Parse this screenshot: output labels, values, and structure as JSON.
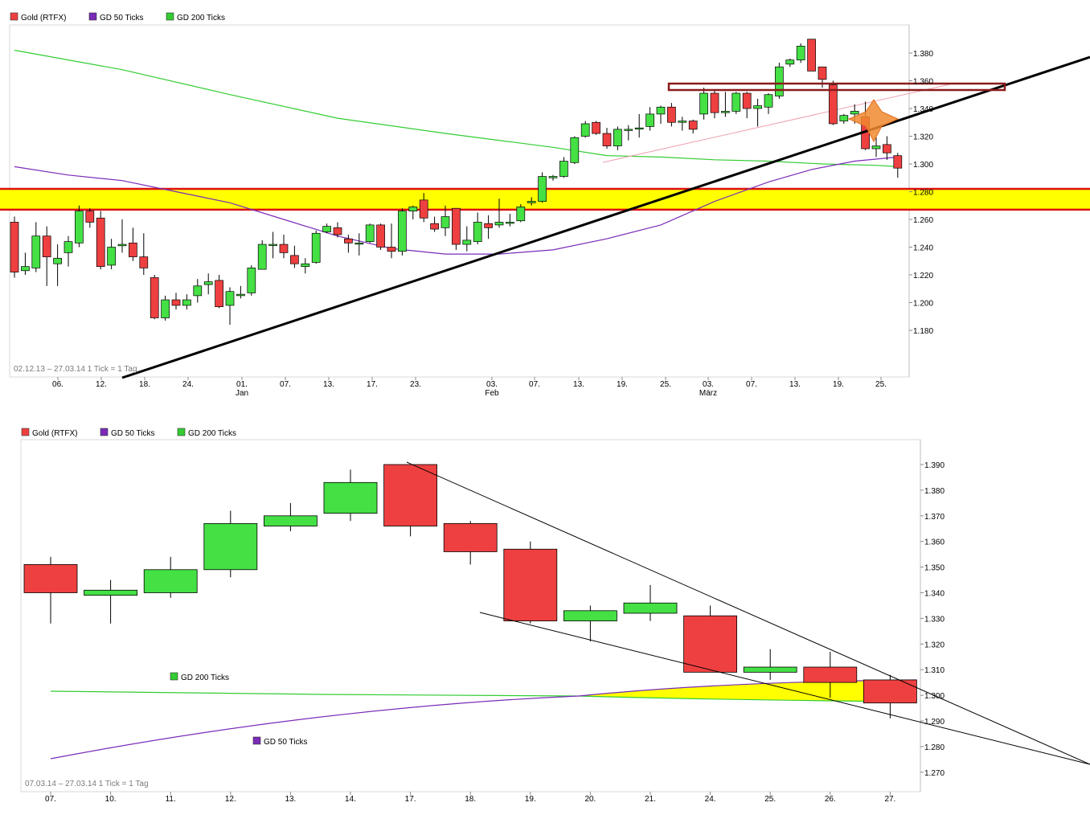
{
  "colors": {
    "up": "#44e044",
    "down": "#ee4040",
    "gd50": "#7a2bb8",
    "gd200": "#33cc33",
    "band": "#ffff00",
    "band_border": "#dd1111",
    "resistance": "#8b1a1a",
    "star": "#f08a30",
    "trend": "#000000"
  },
  "legend": {
    "series1": "Gold (RTFX)",
    "series2": "GD 50 Ticks",
    "series3": "GD 200 Ticks"
  },
  "chart_data": [
    {
      "type": "candlestick",
      "period_note": "02.12.13 – 27.03.14",
      "tick_note": "1 Tick = 1 Tag",
      "y_ticks": [
        "1.380",
        "1.360",
        "1.340",
        "1.320",
        "1.300",
        "1.280",
        "1.260",
        "1.240",
        "1.220",
        "1.200",
        "1.180"
      ],
      "x_ticks": [
        "06.",
        "12.",
        "18.",
        "24.",
        "01.",
        "07.",
        "13.",
        "17.",
        "23.",
        "03.",
        "07.",
        "13.",
        "19.",
        "25.",
        "03.",
        "07.",
        "13.",
        "19.",
        "25."
      ],
      "month_labels": [
        "Jan",
        "Feb",
        "März"
      ],
      "ylim": [
        1.164,
        1.4
      ],
      "candles": [
        {
          "o": 1.258,
          "h": 1.262,
          "l": 1.218,
          "c": 1.222
        },
        {
          "o": 1.223,
          "h": 1.236,
          "l": 1.22,
          "c": 1.226
        },
        {
          "o": 1.225,
          "h": 1.258,
          "l": 1.222,
          "c": 1.248
        },
        {
          "o": 1.248,
          "h": 1.255,
          "l": 1.212,
          "c": 1.233
        },
        {
          "o": 1.228,
          "h": 1.242,
          "l": 1.212,
          "c": 1.232
        },
        {
          "o": 1.236,
          "h": 1.248,
          "l": 1.226,
          "c": 1.244
        },
        {
          "o": 1.243,
          "h": 1.27,
          "l": 1.24,
          "c": 1.266
        },
        {
          "o": 1.266,
          "h": 1.268,
          "l": 1.254,
          "c": 1.258
        },
        {
          "o": 1.261,
          "h": 1.266,
          "l": 1.224,
          "c": 1.226
        },
        {
          "o": 1.227,
          "h": 1.246,
          "l": 1.224,
          "c": 1.24
        },
        {
          "o": 1.241,
          "h": 1.26,
          "l": 1.236,
          "c": 1.242
        },
        {
          "o": 1.243,
          "h": 1.254,
          "l": 1.23,
          "c": 1.233
        },
        {
          "o": 1.233,
          "h": 1.25,
          "l": 1.22,
          "c": 1.225
        },
        {
          "o": 1.218,
          "h": 1.22,
          "l": 1.188,
          "c": 1.189
        },
        {
          "o": 1.189,
          "h": 1.205,
          "l": 1.187,
          "c": 1.202
        },
        {
          "o": 1.202,
          "h": 1.207,
          "l": 1.195,
          "c": 1.198
        },
        {
          "o": 1.198,
          "h": 1.206,
          "l": 1.195,
          "c": 1.202
        },
        {
          "o": 1.205,
          "h": 1.217,
          "l": 1.2,
          "c": 1.212
        },
        {
          "o": 1.213,
          "h": 1.221,
          "l": 1.206,
          "c": 1.215
        },
        {
          "o": 1.216,
          "h": 1.22,
          "l": 1.196,
          "c": 1.197
        },
        {
          "o": 1.198,
          "h": 1.211,
          "l": 1.184,
          "c": 1.208
        },
        {
          "o": 1.205,
          "h": 1.212,
          "l": 1.203,
          "c": 1.206
        },
        {
          "o": 1.207,
          "h": 1.227,
          "l": 1.205,
          "c": 1.225
        },
        {
          "o": 1.224,
          "h": 1.245,
          "l": 1.224,
          "c": 1.242
        },
        {
          "o": 1.242,
          "h": 1.251,
          "l": 1.232,
          "c": 1.242
        },
        {
          "o": 1.242,
          "h": 1.249,
          "l": 1.232,
          "c": 1.236
        },
        {
          "o": 1.234,
          "h": 1.241,
          "l": 1.225,
          "c": 1.228
        },
        {
          "o": 1.226,
          "h": 1.232,
          "l": 1.221,
          "c": 1.228
        },
        {
          "o": 1.229,
          "h": 1.252,
          "l": 1.228,
          "c": 1.25
        },
        {
          "o": 1.251,
          "h": 1.257,
          "l": 1.25,
          "c": 1.255
        },
        {
          "o": 1.254,
          "h": 1.258,
          "l": 1.247,
          "c": 1.249
        },
        {
          "o": 1.246,
          "h": 1.249,
          "l": 1.236,
          "c": 1.243
        },
        {
          "o": 1.243,
          "h": 1.25,
          "l": 1.234,
          "c": 1.243
        },
        {
          "o": 1.244,
          "h": 1.257,
          "l": 1.243,
          "c": 1.256
        },
        {
          "o": 1.256,
          "h": 1.257,
          "l": 1.238,
          "c": 1.24
        },
        {
          "o": 1.24,
          "h": 1.257,
          "l": 1.232,
          "c": 1.237
        },
        {
          "o": 1.237,
          "h": 1.268,
          "l": 1.234,
          "c": 1.266
        },
        {
          "o": 1.266,
          "h": 1.27,
          "l": 1.26,
          "c": 1.269
        },
        {
          "o": 1.274,
          "h": 1.279,
          "l": 1.258,
          "c": 1.261
        },
        {
          "o": 1.257,
          "h": 1.262,
          "l": 1.251,
          "c": 1.253
        },
        {
          "o": 1.254,
          "h": 1.27,
          "l": 1.248,
          "c": 1.262
        },
        {
          "o": 1.268,
          "h": 1.268,
          "l": 1.238,
          "c": 1.242
        },
        {
          "o": 1.242,
          "h": 1.255,
          "l": 1.237,
          "c": 1.245
        },
        {
          "o": 1.244,
          "h": 1.265,
          "l": 1.242,
          "c": 1.258
        },
        {
          "o": 1.257,
          "h": 1.263,
          "l": 1.246,
          "c": 1.254
        },
        {
          "o": 1.256,
          "h": 1.275,
          "l": 1.254,
          "c": 1.258
        },
        {
          "o": 1.258,
          "h": 1.264,
          "l": 1.255,
          "c": 1.258
        },
        {
          "o": 1.259,
          "h": 1.271,
          "l": 1.258,
          "c": 1.269
        },
        {
          "o": 1.272,
          "h": 1.276,
          "l": 1.27,
          "c": 1.273
        },
        {
          "o": 1.273,
          "h": 1.294,
          "l": 1.272,
          "c": 1.291
        },
        {
          "o": 1.29,
          "h": 1.292,
          "l": 1.288,
          "c": 1.291
        },
        {
          "o": 1.291,
          "h": 1.305,
          "l": 1.29,
          "c": 1.302
        },
        {
          "o": 1.301,
          "h": 1.32,
          "l": 1.3,
          "c": 1.319
        },
        {
          "o": 1.32,
          "h": 1.331,
          "l": 1.319,
          "c": 1.329
        },
        {
          "o": 1.33,
          "h": 1.331,
          "l": 1.321,
          "c": 1.322
        },
        {
          "o": 1.322,
          "h": 1.326,
          "l": 1.311,
          "c": 1.313
        },
        {
          "o": 1.313,
          "h": 1.327,
          "l": 1.31,
          "c": 1.325
        },
        {
          "o": 1.325,
          "h": 1.328,
          "l": 1.317,
          "c": 1.325
        },
        {
          "o": 1.326,
          "h": 1.336,
          "l": 1.319,
          "c": 1.326
        },
        {
          "o": 1.327,
          "h": 1.341,
          "l": 1.324,
          "c": 1.336
        },
        {
          "o": 1.336,
          "h": 1.342,
          "l": 1.329,
          "c": 1.341
        },
        {
          "o": 1.341,
          "h": 1.344,
          "l": 1.327,
          "c": 1.33
        },
        {
          "o": 1.33,
          "h": 1.334,
          "l": 1.324,
          "c": 1.331
        },
        {
          "o": 1.331,
          "h": 1.332,
          "l": 1.322,
          "c": 1.325
        },
        {
          "o": 1.336,
          "h": 1.355,
          "l": 1.332,
          "c": 1.351
        },
        {
          "o": 1.351,
          "h": 1.353,
          "l": 1.333,
          "c": 1.337
        },
        {
          "o": 1.337,
          "h": 1.352,
          "l": 1.334,
          "c": 1.338
        },
        {
          "o": 1.338,
          "h": 1.352,
          "l": 1.336,
          "c": 1.351
        },
        {
          "o": 1.351,
          "h": 1.352,
          "l": 1.333,
          "c": 1.34
        },
        {
          "o": 1.34,
          "h": 1.347,
          "l": 1.327,
          "c": 1.342
        },
        {
          "o": 1.341,
          "h": 1.351,
          "l": 1.336,
          "c": 1.35
        },
        {
          "o": 1.349,
          "h": 1.373,
          "l": 1.347,
          "c": 1.37
        },
        {
          "o": 1.372,
          "h": 1.376,
          "l": 1.37,
          "c": 1.375
        },
        {
          "o": 1.375,
          "h": 1.387,
          "l": 1.373,
          "c": 1.385
        },
        {
          "o": 1.39,
          "h": 1.39,
          "l": 1.367,
          "c": 1.367
        },
        {
          "o": 1.37,
          "h": 1.37,
          "l": 1.355,
          "c": 1.361
        },
        {
          "o": 1.357,
          "h": 1.36,
          "l": 1.328,
          "c": 1.329
        },
        {
          "o": 1.331,
          "h": 1.336,
          "l": 1.329,
          "c": 1.335
        },
        {
          "o": 1.336,
          "h": 1.343,
          "l": 1.329,
          "c": 1.338
        },
        {
          "o": 1.334,
          "h": 1.345,
          "l": 1.31,
          "c": 1.311
        },
        {
          "o": 1.311,
          "h": 1.319,
          "l": 1.305,
          "c": 1.313
        },
        {
          "o": 1.314,
          "h": 1.32,
          "l": 1.303,
          "c": 1.308
        },
        {
          "o": 1.306,
          "h": 1.308,
          "l": 1.29,
          "c": 1.297
        }
      ],
      "gd50": [
        [
          0,
          1.298
        ],
        [
          5,
          1.292
        ],
        [
          10,
          1.288
        ],
        [
          15,
          1.28
        ],
        [
          20,
          1.272
        ],
        [
          25,
          1.26
        ],
        [
          30,
          1.248
        ],
        [
          35,
          1.239
        ],
        [
          40,
          1.235
        ],
        [
          45,
          1.235
        ],
        [
          50,
          1.238
        ],
        [
          55,
          1.246
        ],
        [
          60,
          1.256
        ],
        [
          65,
          1.273
        ],
        [
          70,
          1.287
        ],
        [
          74,
          1.296
        ],
        [
          78,
          1.302
        ],
        [
          82,
          1.305
        ]
      ],
      "gd200": [
        [
          0,
          1.382
        ],
        [
          10,
          1.368
        ],
        [
          20,
          1.35
        ],
        [
          30,
          1.333
        ],
        [
          40,
          1.322
        ],
        [
          50,
          1.312
        ],
        [
          55,
          1.306
        ],
        [
          60,
          1.305
        ],
        [
          65,
          1.303
        ],
        [
          70,
          1.302
        ],
        [
          75,
          1.3
        ],
        [
          80,
          1.299
        ],
        [
          82,
          1.298
        ]
      ],
      "support_band": [
        1.267,
        1.282
      ]
    },
    {
      "type": "candlestick",
      "period_note": "07.03.14 – 27.03.14",
      "tick_note": "1 Tick = 1 Tag",
      "legend_gd200": "GD 200 Ticks",
      "legend_gd50": "GD 50 Ticks",
      "y_ticks": [
        "1.390",
        "1.380",
        "1.370",
        "1.360",
        "1.350",
        "1.340",
        "1.330",
        "1.320",
        "1.310",
        "1.300",
        "1.290",
        "1.280",
        "1.270"
      ],
      "x_ticks": [
        "07.",
        "10.",
        "11.",
        "12.",
        "13.",
        "14.",
        "17.",
        "18.",
        "19.",
        "20.",
        "21.",
        "24.",
        "25.",
        "26.",
        "27."
      ],
      "ylim": [
        1.263,
        1.395
      ],
      "candles": [
        {
          "o": 1.351,
          "h": 1.354,
          "l": 1.328,
          "c": 1.34
        },
        {
          "o": 1.339,
          "h": 1.345,
          "l": 1.328,
          "c": 1.341
        },
        {
          "o": 1.34,
          "h": 1.354,
          "l": 1.338,
          "c": 1.349
        },
        {
          "o": 1.349,
          "h": 1.372,
          "l": 1.346,
          "c": 1.367
        },
        {
          "o": 1.366,
          "h": 1.375,
          "l": 1.364,
          "c": 1.37
        },
        {
          "o": 1.371,
          "h": 1.388,
          "l": 1.368,
          "c": 1.383
        },
        {
          "o": 1.39,
          "h": 1.39,
          "l": 1.362,
          "c": 1.366
        },
        {
          "o": 1.367,
          "h": 1.368,
          "l": 1.351,
          "c": 1.356
        },
        {
          "o": 1.357,
          "h": 1.36,
          "l": 1.328,
          "c": 1.329
        },
        {
          "o": 1.329,
          "h": 1.335,
          "l": 1.321,
          "c": 1.333
        },
        {
          "o": 1.332,
          "h": 1.343,
          "l": 1.329,
          "c": 1.336
        },
        {
          "o": 1.331,
          "h": 1.335,
          "l": 1.309,
          "c": 1.309
        },
        {
          "o": 1.309,
          "h": 1.318,
          "l": 1.306,
          "c": 1.311
        },
        {
          "o": 1.311,
          "h": 1.317,
          "l": 1.299,
          "c": 1.305
        },
        {
          "o": 1.306,
          "h": 1.308,
          "l": 1.291,
          "c": 1.297
        }
      ]
    }
  ]
}
